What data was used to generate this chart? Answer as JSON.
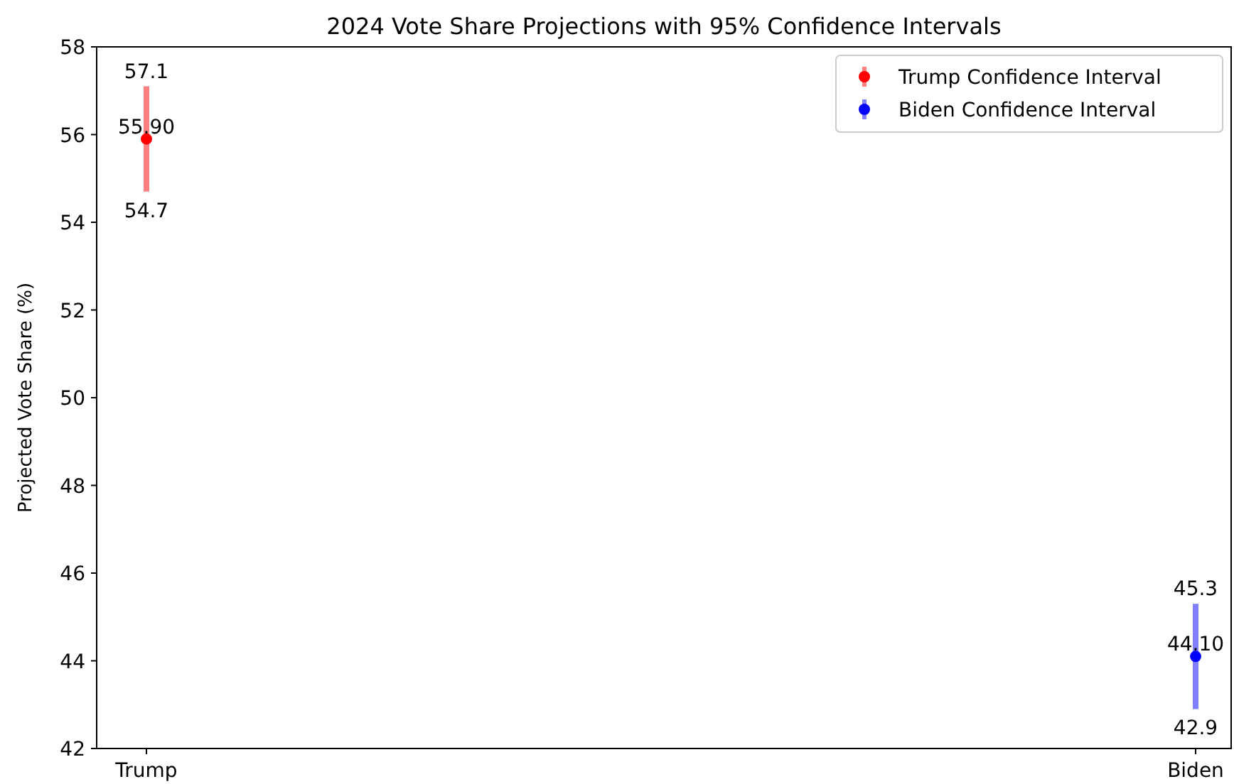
{
  "chart_data": {
    "type": "scatter",
    "title": "2024 Vote Share Projections with 95% Confidence Intervals",
    "ylabel": "Projected Vote Share (%)",
    "categories": [
      "Trump",
      "Biden"
    ],
    "ylim": [
      42,
      58
    ],
    "yticks": [
      42,
      44,
      46,
      48,
      50,
      52,
      54,
      56,
      58
    ],
    "legend": "top right",
    "marker": "circle",
    "series": [
      {
        "name": "Trump Confidence Interval",
        "color": "#ff0000",
        "values": [
          55.9,
          null
        ],
        "errors": [
          [
            54.7,
            57.1
          ],
          null
        ],
        "value_labels": [
          "55.90",
          null
        ]
      },
      {
        "name": "Biden Confidence Interval",
        "color": "#0000ff",
        "values": [
          null,
          44.1
        ],
        "errors": [
          null,
          [
            42.9,
            45.3
          ]
        ],
        "value_labels": [
          null,
          "44.10"
        ]
      }
    ],
    "annotations": [
      {
        "text": "57.1",
        "x": "Trump",
        "y": 57.1
      },
      {
        "text": "54.7",
        "x": "Trump",
        "y": 54.7
      },
      {
        "text": "45.3",
        "x": "Biden",
        "y": 45.3
      },
      {
        "text": "42.9",
        "x": "Biden",
        "y": 42.9
      }
    ]
  }
}
